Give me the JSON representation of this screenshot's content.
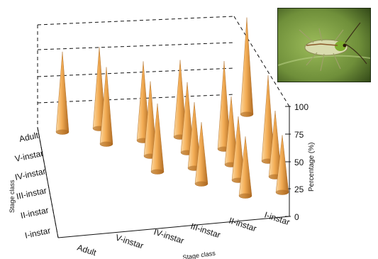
{
  "chart_data": {
    "type": "bar",
    "variant": "3d-cone",
    "title": "",
    "xlabel": "Stage class",
    "ylabel": "Stage class",
    "zlabel": "Percentage (%)",
    "x_categories": [
      "Adult",
      "V-instar",
      "IV-instar",
      "III-instar",
      "II-instar",
      "I-instar"
    ],
    "y_categories": [
      "Adult",
      "V-instar",
      "IV-instar",
      "III-instar",
      "II-instar",
      "I-instar"
    ],
    "z_ticks": [
      0,
      25,
      50,
      75,
      100
    ],
    "zlim": [
      0,
      100
    ],
    "grid": "dashed box",
    "cone_color": "#f0a850",
    "cone_shadow_color": "#a86620",
    "series": [
      {
        "values": [
          75,
          0,
          0,
          0,
          0,
          0
        ]
      },
      {
        "values": [
          80,
          72,
          0,
          0,
          0,
          0
        ]
      },
      {
        "values": [
          0,
          68,
          72,
          0,
          0,
          0
        ]
      },
      {
        "values": [
          0,
          0,
          60,
          70,
          0,
          0
        ]
      },
      {
        "values": [
          0,
          0,
          0,
          55,
          62,
          0
        ]
      },
      {
        "values": [
          0,
          0,
          0,
          0,
          60,
          48
        ]
      }
    ],
    "cones": [
      {
        "x": "Adult",
        "y": "Adult",
        "value": 73
      },
      {
        "x": "V-instar",
        "y": "Adult",
        "value": 74
      },
      {
        "x": "V-instar",
        "y": "V-instar",
        "value": 70
      },
      {
        "x": "IV-instar",
        "y": "V-instar",
        "value": 72
      },
      {
        "x": "IV-instar",
        "y": "IV-instar",
        "value": 68
      },
      {
        "x": "IV-instar",
        "y": "III-instar",
        "value": 62
      },
      {
        "x": "III-instar",
        "y": "V-instar",
        "value": 70
      },
      {
        "x": "III-instar",
        "y": "IV-instar",
        "value": 64
      },
      {
        "x": "III-instar",
        "y": "III-instar",
        "value": 60
      },
      {
        "x": "III-instar",
        "y": "II-instar",
        "value": 56
      },
      {
        "x": "II-instar",
        "y": "IV-instar",
        "value": 80
      },
      {
        "x": "II-instar",
        "y": "III-instar",
        "value": 62
      },
      {
        "x": "II-instar",
        "y": "II-instar",
        "value": 58
      },
      {
        "x": "II-instar",
        "y": "I-instar",
        "value": 54
      },
      {
        "x": "I-instar",
        "y": "III-instar",
        "value": 78
      },
      {
        "x": "I-instar",
        "y": "II-instar",
        "value": 60
      },
      {
        "x": "I-instar",
        "y": "I-instar",
        "value": 52
      },
      {
        "x": "I-instar",
        "y": "Adult",
        "value": 88
      }
    ]
  },
  "photo": {
    "subject": "insect-on-leaf-photo",
    "leaf_color": "#6f8f3a",
    "insect_color": "#d7d9a8"
  }
}
